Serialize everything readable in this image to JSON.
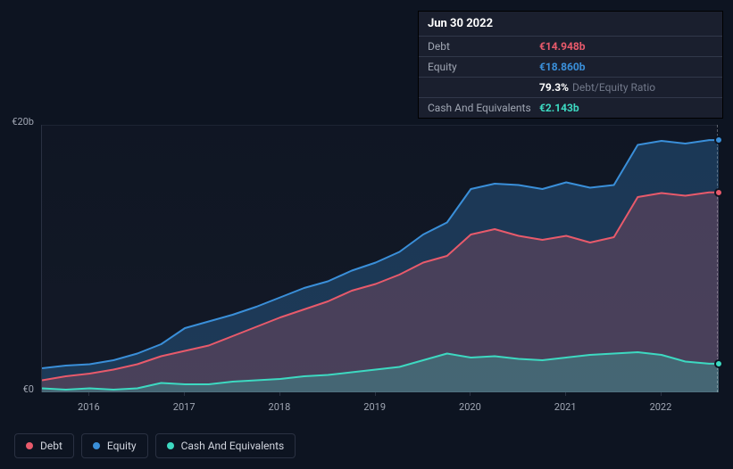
{
  "tooltip": {
    "date": "Jun 30 2022",
    "rows": [
      {
        "label": "Debt",
        "value": "€14.948b",
        "color": "#e85a6b"
      },
      {
        "label": "Equity",
        "value": "€18.860b",
        "color": "#3a8fd9"
      },
      {
        "label": "",
        "value": "79.3%",
        "sublabel": "Debt/Equity Ratio",
        "color": "#ffffff"
      },
      {
        "label": "Cash And Equivalents",
        "value": "€2.143b",
        "color": "#3dd9c1"
      }
    ]
  },
  "chart": {
    "type": "area",
    "background": "#0d1421",
    "plot_background": "#131926",
    "grid_color": "#2a3142",
    "y_axis": {
      "ticks": [
        {
          "label": "€20b",
          "value": 20
        },
        {
          "label": "€0",
          "value": 0
        }
      ],
      "min": 0,
      "max": 20
    },
    "x_axis": {
      "min": 2015.5,
      "max": 2022.6,
      "ticks": [
        2016,
        2017,
        2018,
        2019,
        2020,
        2021,
        2022
      ]
    },
    "series": [
      {
        "name": "Equity",
        "color": "#3a8fd9",
        "fill": "rgba(58,143,217,0.28)",
        "line_width": 2,
        "points": [
          [
            2015.5,
            1.8
          ],
          [
            2015.75,
            2.0
          ],
          [
            2016.0,
            2.1
          ],
          [
            2016.25,
            2.4
          ],
          [
            2016.5,
            2.9
          ],
          [
            2016.75,
            3.6
          ],
          [
            2017.0,
            4.8
          ],
          [
            2017.25,
            5.3
          ],
          [
            2017.5,
            5.8
          ],
          [
            2017.75,
            6.4
          ],
          [
            2018.0,
            7.1
          ],
          [
            2018.25,
            7.8
          ],
          [
            2018.5,
            8.3
          ],
          [
            2018.75,
            9.1
          ],
          [
            2019.0,
            9.7
          ],
          [
            2019.25,
            10.5
          ],
          [
            2019.5,
            11.8
          ],
          [
            2019.75,
            12.7
          ],
          [
            2020.0,
            15.2
          ],
          [
            2020.25,
            15.6
          ],
          [
            2020.5,
            15.5
          ],
          [
            2020.75,
            15.2
          ],
          [
            2021.0,
            15.7
          ],
          [
            2021.25,
            15.3
          ],
          [
            2021.5,
            15.5
          ],
          [
            2021.75,
            18.5
          ],
          [
            2022.0,
            18.8
          ],
          [
            2022.25,
            18.6
          ],
          [
            2022.5,
            18.86
          ],
          [
            2022.6,
            18.86
          ]
        ]
      },
      {
        "name": "Debt",
        "color": "#e85a6b",
        "fill": "rgba(232,90,107,0.22)",
        "line_width": 2,
        "points": [
          [
            2015.5,
            0.9
          ],
          [
            2015.75,
            1.2
          ],
          [
            2016.0,
            1.4
          ],
          [
            2016.25,
            1.7
          ],
          [
            2016.5,
            2.1
          ],
          [
            2016.75,
            2.7
          ],
          [
            2017.0,
            3.1
          ],
          [
            2017.25,
            3.5
          ],
          [
            2017.5,
            4.2
          ],
          [
            2017.75,
            4.9
          ],
          [
            2018.0,
            5.6
          ],
          [
            2018.25,
            6.2
          ],
          [
            2018.5,
            6.8
          ],
          [
            2018.75,
            7.6
          ],
          [
            2019.0,
            8.1
          ],
          [
            2019.25,
            8.8
          ],
          [
            2019.5,
            9.7
          ],
          [
            2019.75,
            10.2
          ],
          [
            2020.0,
            11.8
          ],
          [
            2020.25,
            12.2
          ],
          [
            2020.5,
            11.7
          ],
          [
            2020.75,
            11.4
          ],
          [
            2021.0,
            11.7
          ],
          [
            2021.25,
            11.2
          ],
          [
            2021.5,
            11.6
          ],
          [
            2021.75,
            14.6
          ],
          [
            2022.0,
            14.9
          ],
          [
            2022.25,
            14.7
          ],
          [
            2022.5,
            14.95
          ],
          [
            2022.6,
            14.95
          ]
        ]
      },
      {
        "name": "Cash And Equivalents",
        "color": "#3dd9c1",
        "fill": "rgba(61,217,193,0.25)",
        "line_width": 2,
        "points": [
          [
            2015.5,
            0.3
          ],
          [
            2015.75,
            0.2
          ],
          [
            2016.0,
            0.3
          ],
          [
            2016.25,
            0.2
          ],
          [
            2016.5,
            0.3
          ],
          [
            2016.75,
            0.7
          ],
          [
            2017.0,
            0.6
          ],
          [
            2017.25,
            0.6
          ],
          [
            2017.5,
            0.8
          ],
          [
            2017.75,
            0.9
          ],
          [
            2018.0,
            1.0
          ],
          [
            2018.25,
            1.2
          ],
          [
            2018.5,
            1.3
          ],
          [
            2018.75,
            1.5
          ],
          [
            2019.0,
            1.7
          ],
          [
            2019.25,
            1.9
          ],
          [
            2019.5,
            2.4
          ],
          [
            2019.75,
            2.9
          ],
          [
            2020.0,
            2.6
          ],
          [
            2020.25,
            2.7
          ],
          [
            2020.5,
            2.5
          ],
          [
            2020.75,
            2.4
          ],
          [
            2021.0,
            2.6
          ],
          [
            2021.25,
            2.8
          ],
          [
            2021.5,
            2.9
          ],
          [
            2021.75,
            3.0
          ],
          [
            2022.0,
            2.8
          ],
          [
            2022.25,
            2.3
          ],
          [
            2022.5,
            2.14
          ],
          [
            2022.6,
            2.14
          ]
        ]
      }
    ],
    "legend": [
      {
        "label": "Debt",
        "color": "#e85a6b"
      },
      {
        "label": "Equity",
        "color": "#3a8fd9"
      },
      {
        "label": "Cash And Equivalents",
        "color": "#3dd9c1"
      }
    ]
  }
}
